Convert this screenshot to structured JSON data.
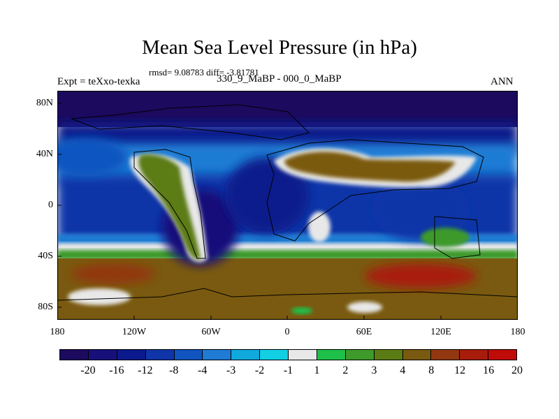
{
  "title": "Mean Sea Level Pressure (in hPa)",
  "stats": "rmsd= 9.08783 diff= -3.81781",
  "left_label": "Expt = teXxo-texka",
  "center_label": "330_9_MaBP - 000_0_MaBP",
  "right_label": "ANN",
  "lat_labels": [
    "80N",
    "40N",
    "0",
    "40S",
    "80S"
  ],
  "lon_labels": [
    "180",
    "120W",
    "60W",
    "0",
    "60E",
    "120E",
    "180"
  ],
  "colorbar": {
    "colors": [
      "#1c0a5e",
      "#18107a",
      "#0a1a8c",
      "#0f35a8",
      "#1054c0",
      "#1f7bd4",
      "#11a8dc",
      "#12cfe4",
      "#e8e8e8",
      "#1ec04a",
      "#3e9a2a",
      "#5b7c14",
      "#7a5a10",
      "#923810",
      "#a81c0c",
      "#c00c08"
    ],
    "labels": [
      "-20",
      "-16",
      "-12",
      "-8",
      "-4",
      "-3",
      "-2",
      "-1",
      "1",
      "2",
      "3",
      "4",
      "8",
      "12",
      "16",
      "20"
    ]
  },
  "chart_data": {
    "type": "heatmap",
    "title": "Mean Sea Level Pressure (in hPa)",
    "xlim": [
      -180,
      180
    ],
    "ylim": [
      -90,
      90
    ],
    "x_ticks": [
      -180,
      -120,
      -60,
      0,
      60,
      120,
      180
    ],
    "y_ticks": [
      80,
      40,
      0,
      -40,
      -80
    ],
    "levels": [
      -20,
      -16,
      -12,
      -8,
      -4,
      -3,
      -2,
      -1,
      1,
      2,
      3,
      4,
      8,
      12,
      16,
      20
    ],
    "colors": [
      "#1c0a5e",
      "#18107a",
      "#0a1a8c",
      "#0f35a8",
      "#1054c0",
      "#1f7bd4",
      "#11a8dc",
      "#12cfe4",
      "#e8e8e8",
      "#1ec04a",
      "#3e9a2a",
      "#5b7c14",
      "#7a5a10",
      "#923810",
      "#a81c0c",
      "#c00c08"
    ],
    "bands": [
      {
        "lat_range": [
          60,
          90
        ],
        "value": -14
      },
      {
        "lat_range": [
          40,
          60
        ],
        "value": -9
      },
      {
        "lat_range": [
          15,
          40
        ],
        "value": -4
      },
      {
        "lat_range": [
          -20,
          15
        ],
        "value": -9
      },
      {
        "lat_range": [
          -35,
          -20
        ],
        "value": -3
      },
      {
        "lat_range": [
          -42,
          -35
        ],
        "value": 0
      },
      {
        "lat_range": [
          -75,
          -42
        ],
        "value": 8
      },
      {
        "lat_range": [
          -90,
          -75
        ],
        "value": 5
      }
    ],
    "features": [
      {
        "region": "North America high",
        "lon_range": [
          -125,
          -85
        ],
        "lat_range": [
          5,
          42
        ],
        "value": 4
      },
      {
        "region": "Eurasia high",
        "lon_range": [
          -15,
          160
        ],
        "lat_range": [
          15,
          48
        ],
        "value": 8
      },
      {
        "region": "Southern Ocean maximum",
        "lon_range": [
          60,
          160
        ],
        "lat_range": [
          -62,
          -45
        ],
        "value": 14
      },
      {
        "region": "Southern Ocean maximum",
        "lon_range": [
          -170,
          -110
        ],
        "lat_range": [
          -62,
          -45
        ],
        "value": 12
      }
    ]
  }
}
